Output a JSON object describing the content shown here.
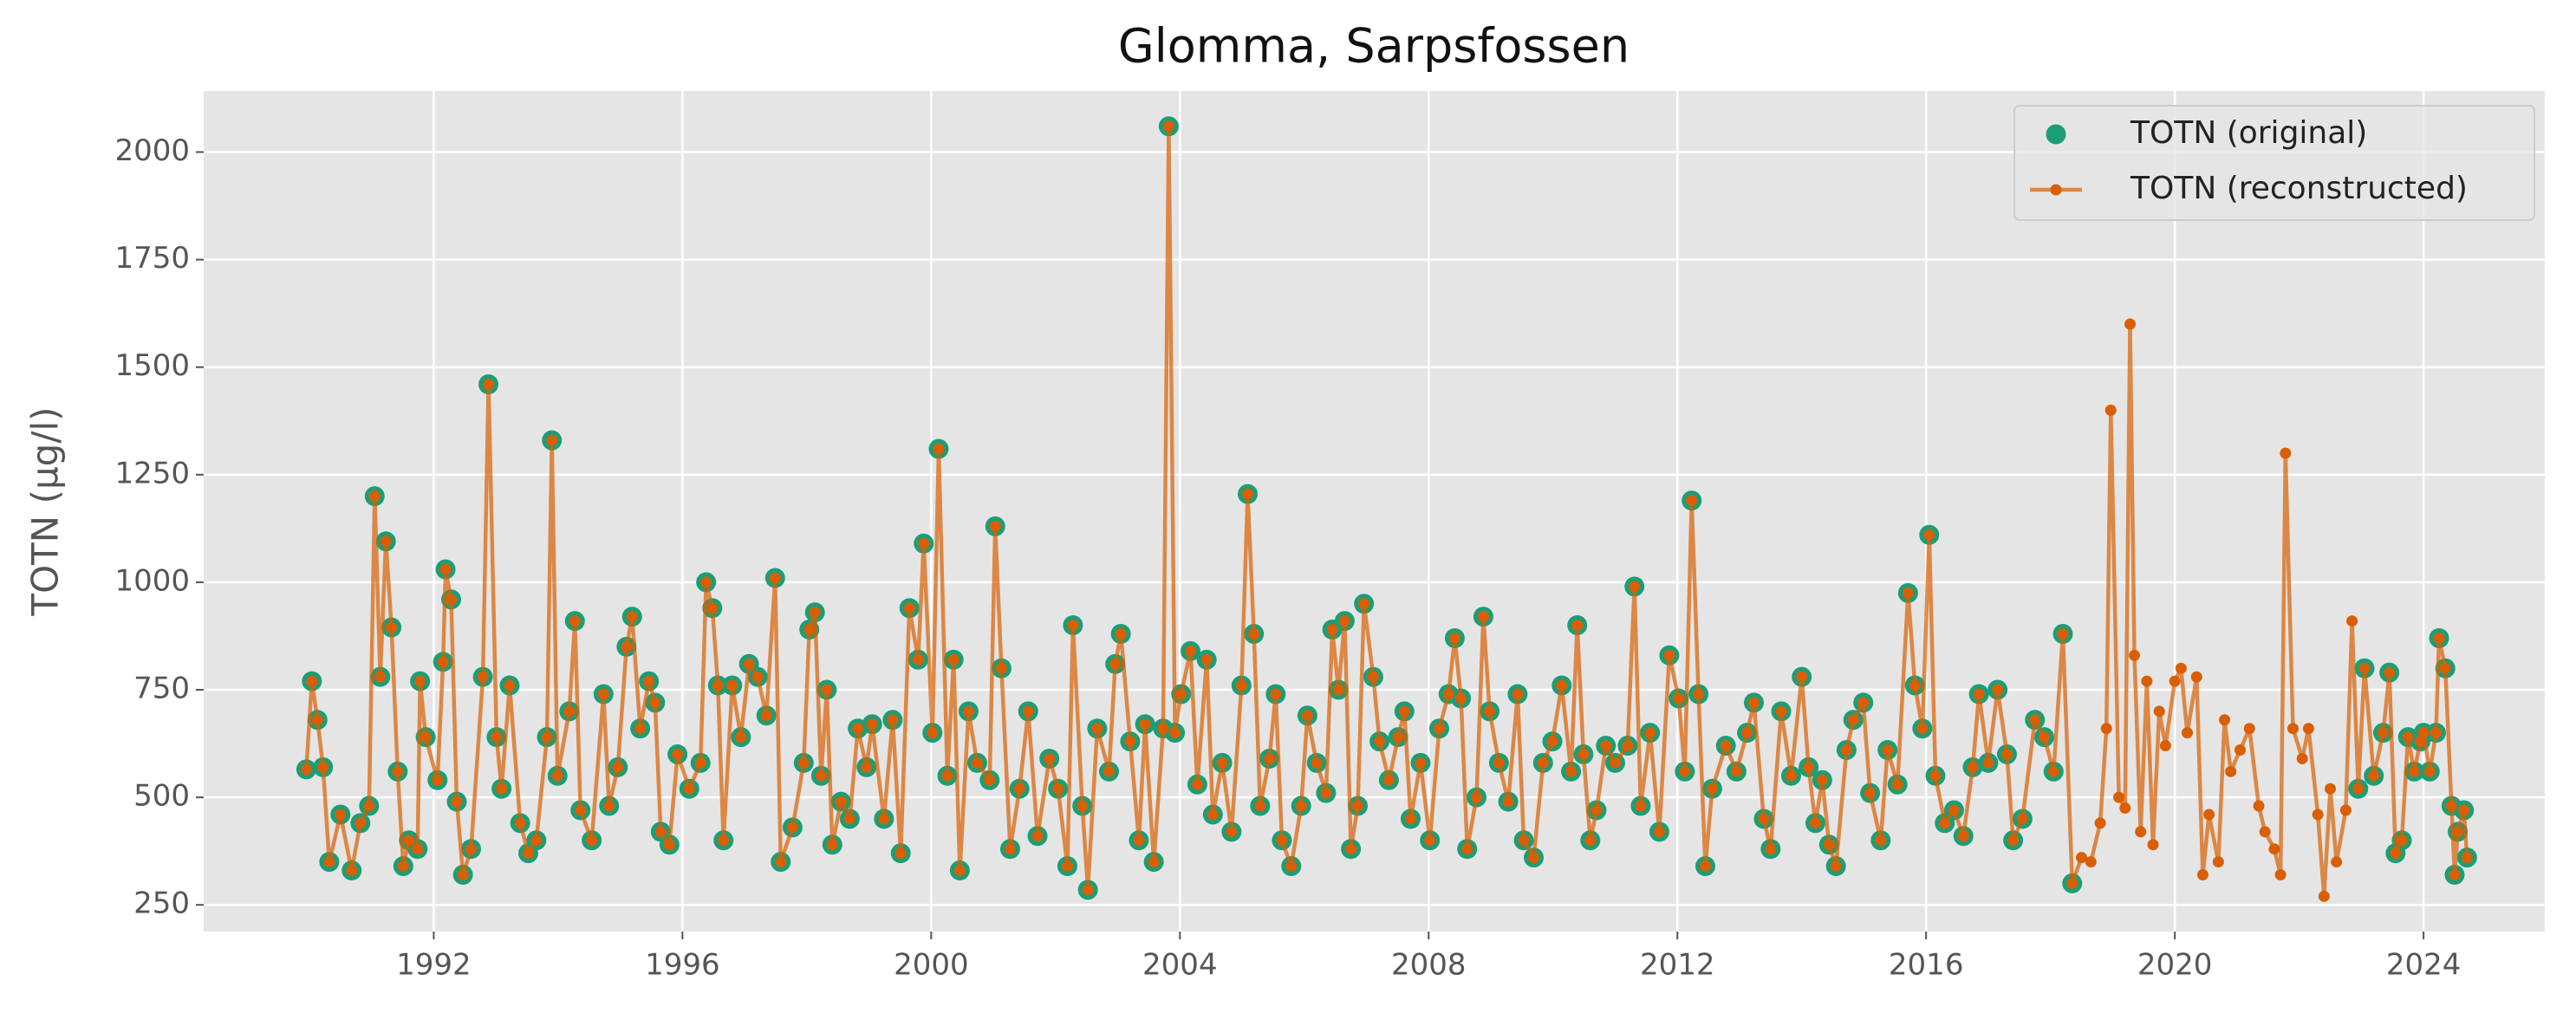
{
  "chart_data": {
    "type": "line",
    "title": "Glomma, Sarpsfossen",
    "y_label": "TOTN (µg/l)",
    "x": [
      1989.95,
      1990.04,
      1990.13,
      1990.22,
      1990.32,
      1990.5,
      1990.68,
      1990.82,
      1990.96,
      1991.05,
      1991.14,
      1991.23,
      1991.32,
      1991.42,
      1991.51,
      1991.6,
      1991.74,
      1991.78,
      1991.87,
      1992.06,
      1992.15,
      1992.19,
      1992.28,
      1992.37,
      1992.47,
      1992.6,
      1992.79,
      1992.88,
      1993.01,
      1993.09,
      1993.22,
      1993.39,
      1993.52,
      1993.65,
      1993.82,
      1993.9,
      1993.99,
      1994.18,
      1994.27,
      1994.36,
      1994.54,
      1994.73,
      1994.82,
      1994.96,
      1995.1,
      1995.19,
      1995.32,
      1995.46,
      1995.56,
      1995.65,
      1995.79,
      1995.92,
      1996.11,
      1996.29,
      1996.38,
      1996.48,
      1996.57,
      1996.66,
      1996.8,
      1996.94,
      1997.07,
      1997.21,
      1997.35,
      1997.49,
      1997.58,
      1997.77,
      1997.95,
      1998.04,
      1998.13,
      1998.23,
      1998.32,
      1998.41,
      1998.55,
      1998.69,
      1998.82,
      1998.96,
      1999.05,
      1999.24,
      1999.38,
      1999.51,
      1999.65,
      1999.79,
      1999.88,
      2000.02,
      2000.12,
      2000.26,
      2000.36,
      2000.46,
      2000.6,
      2000.74,
      2000.94,
      2001.03,
      2001.13,
      2001.27,
      2001.42,
      2001.56,
      2001.71,
      2001.9,
      2002.04,
      2002.19,
      2002.28,
      2002.43,
      2002.52,
      2002.67,
      2002.86,
      2002.96,
      2003.05,
      2003.2,
      2003.34,
      2003.44,
      2003.58,
      2003.73,
      2003.82,
      2003.92,
      2004.02,
      2004.17,
      2004.28,
      2004.43,
      2004.53,
      2004.68,
      2004.83,
      2004.99,
      2005.09,
      2005.19,
      2005.29,
      2005.44,
      2005.54,
      2005.64,
      2005.79,
      2005.95,
      2006.05,
      2006.2,
      2006.35,
      2006.45,
      2006.55,
      2006.65,
      2006.75,
      2006.86,
      2006.96,
      2007.11,
      2007.21,
      2007.36,
      2007.51,
      2007.61,
      2007.71,
      2007.87,
      2008.02,
      2008.17,
      2008.32,
      2008.42,
      2008.52,
      2008.62,
      2008.77,
      2008.88,
      2008.98,
      2009.13,
      2009.28,
      2009.43,
      2009.53,
      2009.69,
      2009.84,
      2009.99,
      2010.14,
      2010.29,
      2010.39,
      2010.49,
      2010.6,
      2010.7,
      2010.85,
      2011.0,
      2011.2,
      2011.31,
      2011.41,
      2011.56,
      2011.71,
      2011.87,
      2012.02,
      2012.12,
      2012.23,
      2012.34,
      2012.45,
      2012.56,
      2012.78,
      2012.95,
      2013.12,
      2013.23,
      2013.39,
      2013.5,
      2013.67,
      2013.83,
      2014.0,
      2014.11,
      2014.22,
      2014.33,
      2014.44,
      2014.55,
      2014.72,
      2014.83,
      2014.99,
      2015.1,
      2015.27,
      2015.38,
      2015.54,
      2015.71,
      2015.82,
      2015.94,
      2016.05,
      2016.15,
      2016.3,
      2016.45,
      2016.6,
      2016.75,
      2016.85,
      2017.0,
      2017.15,
      2017.3,
      2017.4,
      2017.55,
      2017.75,
      2017.9,
      2018.05,
      2018.2,
      2018.35,
      2018.5,
      2018.65,
      2018.8,
      2018.9,
      2018.97,
      2019.1,
      2019.2,
      2019.28,
      2019.35,
      2019.45,
      2019.55,
      2019.65,
      2019.75,
      2019.85,
      2020.0,
      2020.1,
      2020.2,
      2020.35,
      2020.45,
      2020.55,
      2020.7,
      2020.8,
      2020.9,
      2021.05,
      2021.2,
      2021.35,
      2021.45,
      2021.6,
      2021.7,
      2021.78,
      2021.9,
      2022.05,
      2022.15,
      2022.3,
      2022.4,
      2022.5,
      2022.6,
      2022.75,
      2022.85,
      2022.95,
      2023.05,
      2023.2,
      2023.35,
      2023.45,
      2023.55,
      2023.65,
      2023.75,
      2023.85,
      2023.95,
      2024.0,
      2024.1,
      2024.2,
      2024.25,
      2024.35,
      2024.45,
      2024.5,
      2024.55,
      2024.65,
      2024.7
    ],
    "series": [
      {
        "name": "TOTN (original)",
        "color": "#1b9e77",
        "mode": "markers",
        "values": [
          565,
          770,
          680,
          570,
          350,
          460,
          330,
          440,
          480,
          1200,
          780,
          1095,
          895,
          560,
          340,
          400,
          380,
          770,
          640,
          540,
          815,
          1030,
          960,
          490,
          320,
          380,
          780,
          1460,
          640,
          520,
          760,
          440,
          370,
          400,
          640,
          1330,
          550,
          700,
          910,
          470,
          400,
          740,
          480,
          570,
          850,
          920,
          660,
          770,
          720,
          420,
          390,
          600,
          520,
          580,
          1000,
          940,
          760,
          400,
          760,
          640,
          810,
          780,
          690,
          1010,
          350,
          430,
          580,
          890,
          930,
          550,
          750,
          390,
          490,
          450,
          660,
          570,
          670,
          450,
          680,
          370,
          940,
          820,
          1090,
          650,
          1310,
          550,
          820,
          330,
          700,
          580,
          540,
          1130,
          800,
          380,
          520,
          700,
          410,
          590,
          520,
          340,
          900,
          480,
          285,
          660,
          560,
          810,
          880,
          630,
          400,
          670,
          350,
          660,
          2060,
          650,
          740,
          840,
          530,
          820,
          460,
          580,
          420,
          760,
          1205,
          880,
          480,
          590,
          740,
          400,
          340,
          480,
          690,
          580,
          510,
          890,
          750,
          910,
          380,
          480,
          950,
          780,
          630,
          540,
          640,
          700,
          450,
          580,
          400,
          660,
          740,
          870,
          730,
          380,
          500,
          920,
          700,
          580,
          490,
          740,
          400,
          360,
          580,
          630,
          760,
          560,
          900,
          600,
          400,
          470,
          620,
          580,
          620,
          990,
          480,
          650,
          420,
          830,
          730,
          560,
          1190,
          740,
          340,
          520,
          620,
          560,
          650,
          720,
          450,
          380,
          700,
          550,
          780,
          570,
          440,
          540,
          390,
          340,
          610,
          680,
          720,
          510,
          400,
          610,
          530,
          975,
          760,
          660,
          1110,
          550,
          440,
          470,
          410,
          570,
          740,
          580,
          750,
          600,
          400,
          450,
          680,
          640,
          560,
          880,
          300,
          null,
          null,
          null,
          null,
          null,
          null,
          null,
          null,
          null,
          null,
          null,
          null,
          null,
          null,
          null,
          null,
          null,
          null,
          null,
          null,
          null,
          null,
          null,
          null,
          null,
          null,
          null,
          null,
          null,
          null,
          null,
          null,
          null,
          null,
          null,
          null,
          null,
          null,
          null,
          520,
          800,
          550,
          650,
          790,
          370,
          400,
          640,
          560,
          630,
          650,
          560,
          650,
          870,
          800,
          480,
          320,
          420,
          470,
          360
        ]
      },
      {
        "name": "TOTN (reconstructed)",
        "color": "#d95f02",
        "mode": "lines+markers",
        "values": [
          565,
          770,
          680,
          570,
          350,
          460,
          330,
          440,
          480,
          1200,
          780,
          1095,
          895,
          560,
          340,
          400,
          380,
          770,
          640,
          540,
          815,
          1030,
          960,
          490,
          320,
          380,
          780,
          1460,
          640,
          520,
          760,
          440,
          370,
          400,
          640,
          1330,
          550,
          700,
          910,
          470,
          400,
          740,
          480,
          570,
          850,
          920,
          660,
          770,
          720,
          420,
          390,
          600,
          520,
          580,
          1000,
          940,
          760,
          400,
          760,
          640,
          810,
          780,
          690,
          1010,
          350,
          430,
          580,
          890,
          930,
          550,
          750,
          390,
          490,
          450,
          660,
          570,
          670,
          450,
          680,
          370,
          940,
          820,
          1090,
          650,
          1310,
          550,
          820,
          330,
          700,
          580,
          540,
          1130,
          800,
          380,
          520,
          700,
          410,
          590,
          520,
          340,
          900,
          480,
          285,
          660,
          560,
          810,
          880,
          630,
          400,
          670,
          350,
          660,
          2060,
          650,
          740,
          840,
          530,
          820,
          460,
          580,
          420,
          760,
          1205,
          880,
          480,
          590,
          740,
          400,
          340,
          480,
          690,
          580,
          510,
          890,
          750,
          910,
          380,
          480,
          950,
          780,
          630,
          540,
          640,
          700,
          450,
          580,
          400,
          660,
          740,
          870,
          730,
          380,
          500,
          920,
          700,
          580,
          490,
          740,
          400,
          360,
          580,
          630,
          760,
          560,
          900,
          600,
          400,
          470,
          620,
          580,
          620,
          990,
          480,
          650,
          420,
          830,
          730,
          560,
          1190,
          740,
          340,
          520,
          620,
          560,
          650,
          720,
          450,
          380,
          700,
          550,
          780,
          570,
          440,
          540,
          390,
          340,
          610,
          680,
          720,
          510,
          400,
          610,
          530,
          975,
          760,
          660,
          1110,
          550,
          440,
          470,
          410,
          570,
          740,
          580,
          750,
          600,
          400,
          450,
          680,
          640,
          560,
          880,
          300,
          360,
          350,
          440,
          660,
          1400,
          500,
          475,
          1600,
          830,
          420,
          770,
          390,
          700,
          620,
          770,
          800,
          650,
          780,
          320,
          460,
          350,
          680,
          560,
          610,
          660,
          480,
          420,
          380,
          320,
          1300,
          660,
          590,
          660,
          460,
          270,
          520,
          350,
          470,
          910,
          520,
          800,
          550,
          650,
          790,
          370,
          400,
          640,
          560,
          630,
          650,
          560,
          650,
          870,
          800,
          480,
          320,
          420,
          470,
          360
        ]
      }
    ],
    "xlim": [
      1988.3,
      2025.95
    ],
    "xticks": [
      1992,
      1996,
      2000,
      2004,
      2008,
      2012,
      2016,
      2020,
      2024
    ],
    "ylim": [
      188,
      2142
    ],
    "yticks": [
      250,
      500,
      750,
      1000,
      1250,
      1500,
      1750,
      2000
    ],
    "grid": true,
    "legend": "upper right"
  }
}
